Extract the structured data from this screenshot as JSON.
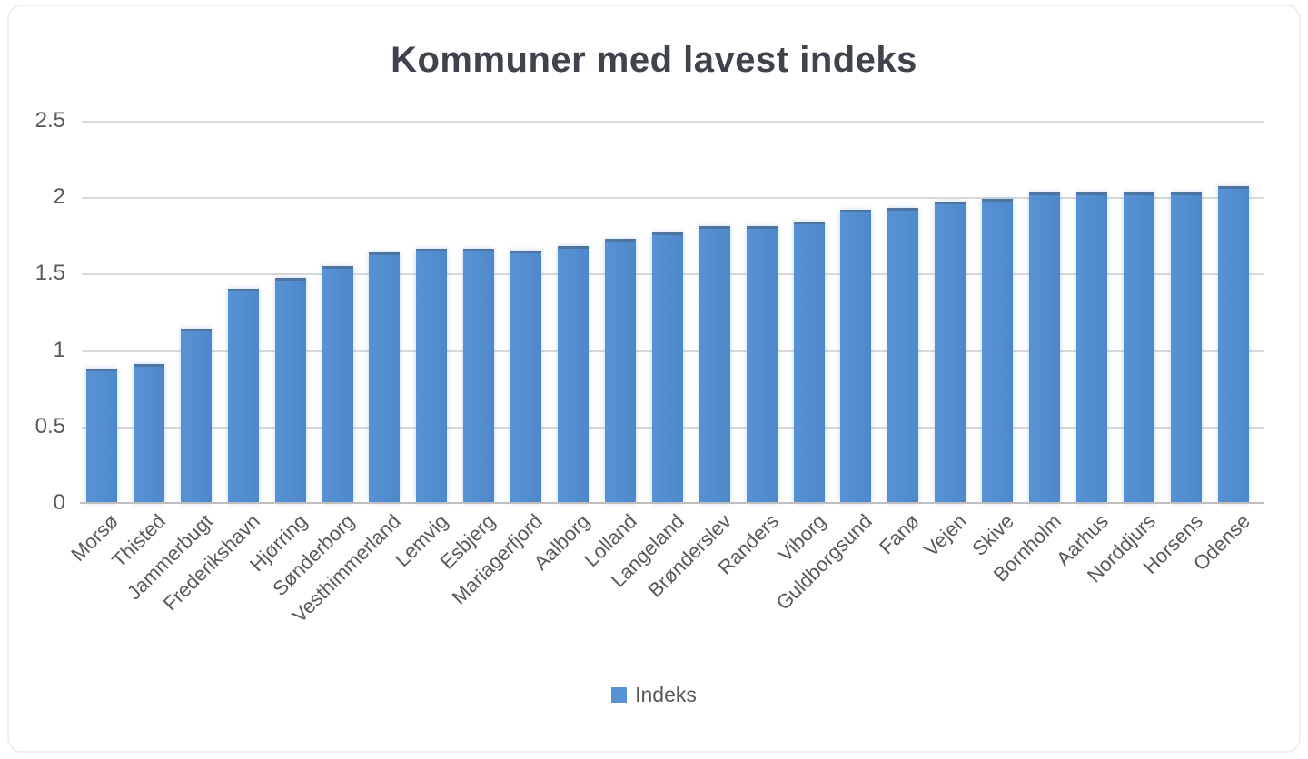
{
  "chart_data": {
    "type": "bar",
    "title": "Kommuner med lavest indeks",
    "categories": [
      "Morsø",
      "Thisted",
      "Jammerbugt",
      "Frederikshavn",
      "Hjørring",
      "Sønderborg",
      "Vesthimmerland",
      "Lemvig",
      "Esbjerg",
      "Mariagerfjord",
      "Aalborg",
      "Lolland",
      "Langeland",
      "Brønderslev",
      "Randers",
      "Viborg",
      "Guldborgsund",
      "Fanø",
      "Vejen",
      "Skive",
      "Bornholm",
      "Aarhus",
      "Norddjurs",
      "Horsens",
      "Odense"
    ],
    "series": [
      {
        "name": "Indeks",
        "values": [
          0.88,
          0.91,
          1.14,
          1.4,
          1.47,
          1.55,
          1.64,
          1.66,
          1.66,
          1.65,
          1.68,
          1.73,
          1.77,
          1.81,
          1.81,
          1.84,
          1.92,
          1.93,
          1.97,
          1.99,
          2.03,
          2.03,
          2.03,
          2.03,
          2.07
        ]
      }
    ],
    "xlabel": "",
    "ylabel": "",
    "ylim": [
      0,
      2.5
    ],
    "ytick_step": 0.5,
    "ytick_labels": [
      "0",
      "0.5",
      "1",
      "1.5",
      "2",
      "2.5"
    ],
    "grid": "horizontal",
    "legend_position": "bottom",
    "colors": {
      "bar": "#5793d4",
      "title": "#3f434c",
      "axis_text": "#595959",
      "gridline": "#d9d9d9",
      "axis_line": "#bfbfbf",
      "legend_text": "#595959"
    }
  }
}
